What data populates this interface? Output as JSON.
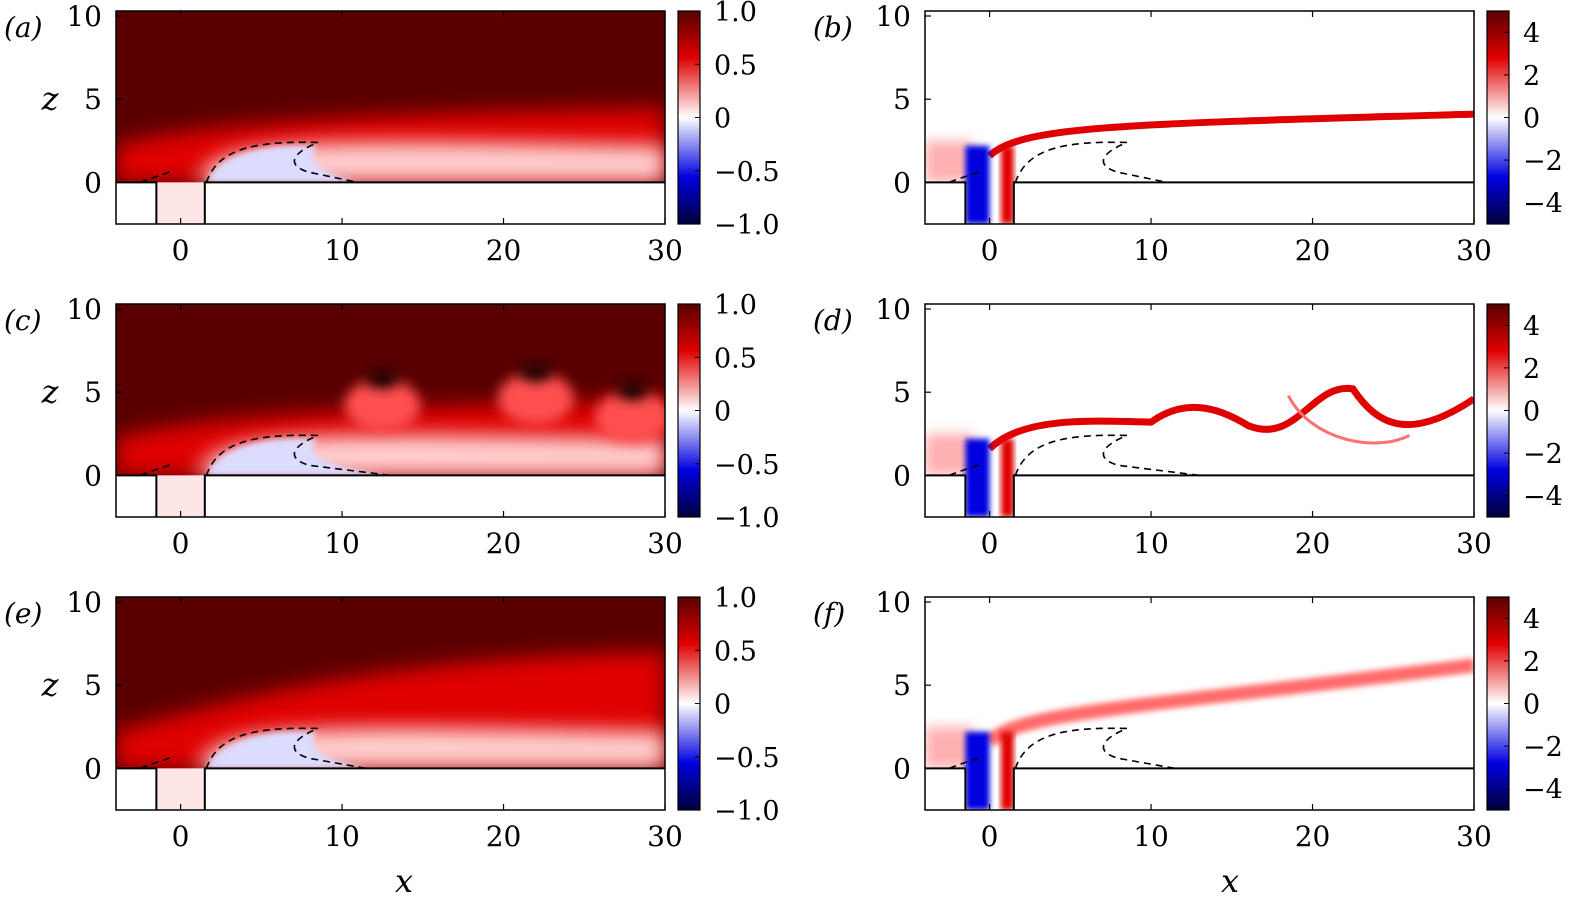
{
  "figure": {
    "xlabel": "x",
    "ylabel": "z",
    "panel_labels": [
      "(a)",
      "(b)",
      "(c)",
      "(d)",
      "(e)",
      "(f)"
    ]
  },
  "colors": {
    "dark_red": "#5a0000",
    "red": "#e00000",
    "white": "#ffffff",
    "blue": "#0000e0",
    "dark_blue": "#00003c",
    "contour": "#000000"
  },
  "chart_data": [
    {
      "panel": "(a)",
      "type": "heatmap",
      "quantity": "velocity",
      "xlabel": "",
      "ylabel": "z",
      "xlim": [
        -4,
        30
      ],
      "ylim": [
        -2.5,
        10.3
      ],
      "xticks": [
        0,
        10,
        20,
        30
      ],
      "yticks": [
        0,
        5,
        10
      ],
      "colorbar": {
        "range": [
          -1.0,
          1.0
        ],
        "ticks": [
          1.0,
          0.5,
          0,
          -0.5,
          -1.0
        ],
        "tick_labels": [
          "1.0",
          "0.5",
          "0",
          "−0.5",
          "−1.0"
        ]
      },
      "recirculation_contour_x_end": 11
    },
    {
      "panel": "(b)",
      "type": "heatmap",
      "quantity": "vorticity",
      "xlabel": "",
      "ylabel": "",
      "xlim": [
        -4,
        30
      ],
      "ylim": [
        -2.5,
        10.3
      ],
      "xticks": [
        0,
        10,
        20,
        30
      ],
      "yticks": [
        0,
        5,
        10
      ],
      "colorbar": {
        "range": [
          -5,
          5
        ],
        "ticks": [
          4,
          2,
          0,
          -2,
          -4
        ],
        "tick_labels": [
          "4",
          "2",
          "0",
          "−2",
          "−4"
        ]
      },
      "recirculation_contour_x_end": 11
    },
    {
      "panel": "(c)",
      "type": "heatmap",
      "quantity": "velocity",
      "xlabel": "",
      "ylabel": "z",
      "xlim": [
        -4,
        30
      ],
      "ylim": [
        -2.5,
        10.3
      ],
      "xticks": [
        0,
        10,
        20,
        30
      ],
      "yticks": [
        0,
        5,
        10
      ],
      "colorbar": {
        "range": [
          -1.0,
          1.0
        ],
        "ticks": [
          1.0,
          0.5,
          0,
          -0.5,
          -1.0
        ],
        "tick_labels": [
          "1.0",
          "0.5",
          "0",
          "−0.5",
          "−1.0"
        ]
      },
      "recirculation_contour_x_end": 13
    },
    {
      "panel": "(d)",
      "type": "heatmap",
      "quantity": "vorticity",
      "xlabel": "",
      "ylabel": "",
      "xlim": [
        -4,
        30
      ],
      "ylim": [
        -2.5,
        10.3
      ],
      "xticks": [
        0,
        10,
        20,
        30
      ],
      "yticks": [
        0,
        5,
        10
      ],
      "colorbar": {
        "range": [
          -5,
          5
        ],
        "ticks": [
          4,
          2,
          0,
          -2,
          -4
        ],
        "tick_labels": [
          "4",
          "2",
          "0",
          "−2",
          "−4"
        ]
      },
      "recirculation_contour_x_end": 13
    },
    {
      "panel": "(e)",
      "type": "heatmap",
      "quantity": "velocity",
      "xlabel": "x",
      "ylabel": "z",
      "xlim": [
        -4,
        30
      ],
      "ylim": [
        -2.5,
        10.3
      ],
      "xticks": [
        0,
        10,
        20,
        30
      ],
      "yticks": [
        0,
        5,
        10
      ],
      "colorbar": {
        "range": [
          -1.0,
          1.0
        ],
        "ticks": [
          1.0,
          0.5,
          0,
          -0.5,
          -1.0
        ],
        "tick_labels": [
          "1.0",
          "0.5",
          "0",
          "−0.5",
          "−1.0"
        ]
      },
      "recirculation_contour_x_end": 11.5
    },
    {
      "panel": "(f)",
      "type": "heatmap",
      "quantity": "vorticity",
      "xlabel": "x",
      "ylabel": "",
      "xlim": [
        -4,
        30
      ],
      "ylim": [
        -2.5,
        10.3
      ],
      "xticks": [
        0,
        10,
        20,
        30
      ],
      "yticks": [
        0,
        5,
        10
      ],
      "colorbar": {
        "range": [
          -5,
          5
        ],
        "ticks": [
          4,
          2,
          0,
          -2,
          -4
        ],
        "tick_labels": [
          "4",
          "2",
          "0",
          "−2",
          "−4"
        ]
      },
      "recirculation_contour_x_end": 11.5
    }
  ]
}
